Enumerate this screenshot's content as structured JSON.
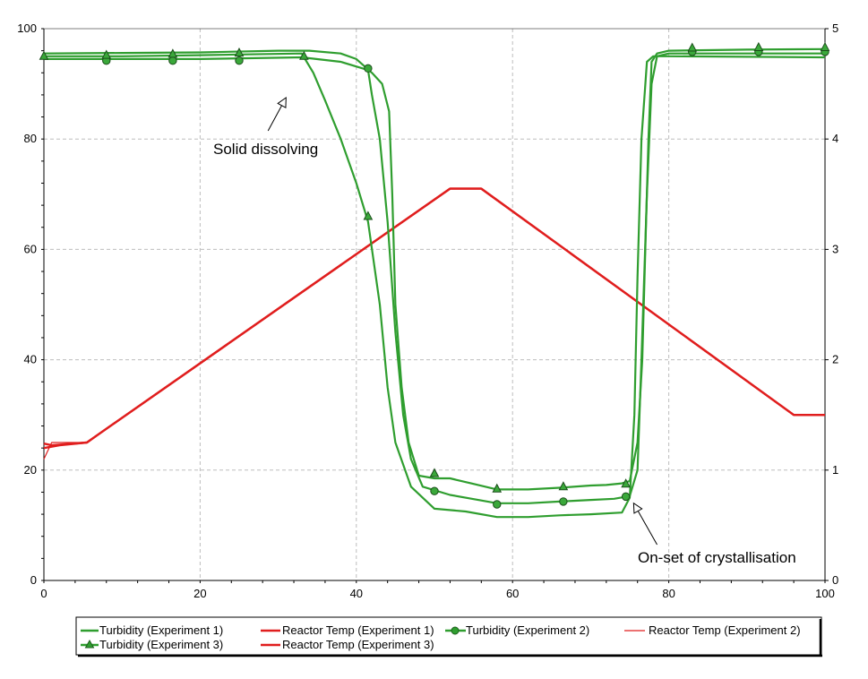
{
  "chart_data": {
    "type": "line",
    "x_ticks": [
      "0",
      "20",
      "40",
      "60",
      "80",
      "100"
    ],
    "y_left_ticks": [
      "0",
      "20",
      "40",
      "60",
      "80",
      "100"
    ],
    "y_right_ticks": [
      "0",
      "1",
      "2",
      "3",
      "4",
      "5"
    ],
    "xlim": [
      0,
      100
    ],
    "ylim_left": [
      0,
      100
    ],
    "ylim_right": [
      0,
      5
    ],
    "grid": true,
    "legend_position": "bottom",
    "colors": {
      "turbidity": "#2f9e2f",
      "temp": "#e01e1e"
    },
    "series": [
      {
        "name": "Turbidity (Experiment 1)",
        "marker": "none",
        "points": [
          [
            0,
            95.5
          ],
          [
            10,
            95.6
          ],
          [
            20,
            95.7
          ],
          [
            30,
            96
          ],
          [
            34,
            96
          ],
          [
            38,
            95.5
          ],
          [
            40,
            94.5
          ],
          [
            42,
            92
          ],
          [
            43.3,
            90
          ],
          [
            44.2,
            85
          ],
          [
            44.6,
            70
          ],
          [
            45,
            50
          ],
          [
            45.8,
            35
          ],
          [
            46.7,
            25
          ],
          [
            48,
            19
          ],
          [
            50,
            18.5
          ],
          [
            52,
            18.5
          ],
          [
            55,
            17.5
          ],
          [
            58,
            16.5
          ],
          [
            62,
            16.5
          ],
          [
            66,
            16.8
          ],
          [
            70,
            17.2
          ],
          [
            72,
            17.3
          ],
          [
            74,
            17.6
          ],
          [
            75,
            18
          ],
          [
            76,
            25
          ],
          [
            76.6,
            40
          ],
          [
            77,
            60
          ],
          [
            77.4,
            80
          ],
          [
            77.8,
            94
          ],
          [
            78.5,
            95.5
          ],
          [
            80,
            96
          ],
          [
            90,
            96.2
          ],
          [
            100,
            96.3
          ]
        ],
        "marker_points": []
      },
      {
        "name": "Reactor Temp (Experiment 1)",
        "marker": "none",
        "points": [
          [
            0,
            24
          ],
          [
            2,
            24.5
          ],
          [
            5.5,
            25
          ],
          [
            7,
            26.5
          ],
          [
            52,
            71
          ],
          [
            56,
            71
          ],
          [
            96,
            30
          ],
          [
            100,
            30
          ]
        ],
        "marker_points": []
      },
      {
        "name": "Turbidity (Experiment 2)",
        "marker": "circle",
        "points": [
          [
            0,
            94.5
          ],
          [
            10,
            94.5
          ],
          [
            20,
            94.5
          ],
          [
            33,
            94.8
          ],
          [
            38,
            94
          ],
          [
            41.5,
            92.5
          ],
          [
            42,
            88
          ],
          [
            43,
            80
          ],
          [
            44,
            65
          ],
          [
            45,
            45
          ],
          [
            46,
            30
          ],
          [
            47,
            22
          ],
          [
            48.5,
            17
          ],
          [
            52,
            15.5
          ],
          [
            56,
            14.5
          ],
          [
            58,
            14
          ],
          [
            62,
            14
          ],
          [
            66,
            14.3
          ],
          [
            70,
            14.6
          ],
          [
            73,
            14.8
          ],
          [
            75,
            15.3
          ],
          [
            76,
            20
          ],
          [
            76.5,
            40
          ],
          [
            77.2,
            70
          ],
          [
            77.8,
            90
          ],
          [
            78.5,
            95
          ],
          [
            80,
            95.5
          ],
          [
            100,
            95.5
          ]
        ],
        "marker_points": [
          [
            8,
            94.2
          ],
          [
            16.5,
            94.2
          ],
          [
            25,
            94.2
          ],
          [
            41.5,
            92.8
          ],
          [
            50,
            16.2
          ],
          [
            58,
            13.8
          ],
          [
            66.5,
            14.3
          ],
          [
            74.5,
            15.2
          ],
          [
            83,
            95.8
          ],
          [
            91.5,
            95.8
          ],
          [
            100,
            95.8
          ]
        ]
      },
      {
        "name": "Reactor Temp (Experiment 2)",
        "marker": "none",
        "points": [
          [
            0,
            22
          ],
          [
            1,
            25
          ],
          [
            3,
            25
          ],
          [
            5.5,
            25
          ],
          [
            7,
            26.5
          ],
          [
            52,
            71
          ],
          [
            56,
            71
          ],
          [
            96,
            30
          ],
          [
            100,
            30
          ]
        ],
        "marker_points": []
      },
      {
        "name": "Turbidity (Experiment 3)",
        "marker": "triangle",
        "points": [
          [
            0,
            95
          ],
          [
            10,
            95
          ],
          [
            20,
            95.2
          ],
          [
            33,
            95.5
          ],
          [
            34.5,
            92
          ],
          [
            36,
            87
          ],
          [
            38,
            80
          ],
          [
            40,
            72
          ],
          [
            41.5,
            65
          ],
          [
            43,
            50
          ],
          [
            44,
            35
          ],
          [
            45,
            25
          ],
          [
            47,
            17
          ],
          [
            50,
            13
          ],
          [
            54,
            12.5
          ],
          [
            58,
            11.5
          ],
          [
            62,
            11.5
          ],
          [
            66,
            11.8
          ],
          [
            70,
            12
          ],
          [
            74,
            12.3
          ],
          [
            75,
            15
          ],
          [
            75.6,
            30
          ],
          [
            76,
            55
          ],
          [
            76.5,
            80
          ],
          [
            77.2,
            94
          ],
          [
            78,
            95
          ],
          [
            80,
            95
          ],
          [
            100,
            94.8
          ]
        ],
        "marker_points": [
          [
            0,
            95
          ],
          [
            8,
            95.2
          ],
          [
            16.5,
            95.4
          ],
          [
            25,
            95.6
          ],
          [
            33.3,
            95
          ],
          [
            41.5,
            66
          ],
          [
            50,
            19.4
          ],
          [
            58,
            16.6
          ],
          [
            66.5,
            17
          ],
          [
            74.5,
            17.5
          ],
          [
            83,
            96.5
          ],
          [
            91.5,
            96.6
          ],
          [
            100,
            96.6
          ]
        ]
      },
      {
        "name": "Reactor Temp (Experiment 3)",
        "marker": "none",
        "points": [
          [
            0,
            24.8
          ],
          [
            1,
            24.5
          ],
          [
            5.5,
            25
          ],
          [
            7,
            26.5
          ],
          [
            52,
            71
          ],
          [
            56,
            71
          ],
          [
            96,
            30
          ],
          [
            100,
            30
          ]
        ],
        "marker_points": []
      }
    ],
    "annotations": [
      {
        "text": "Solid dissolving",
        "x": 30.5,
        "y": 78.5,
        "arrow_to": [
          31,
          87.5
        ]
      },
      {
        "text": "On-set of crystallisation",
        "x": 76.5,
        "y": 3.5,
        "arrow_to": [
          75.5,
          14
        ]
      }
    ]
  }
}
